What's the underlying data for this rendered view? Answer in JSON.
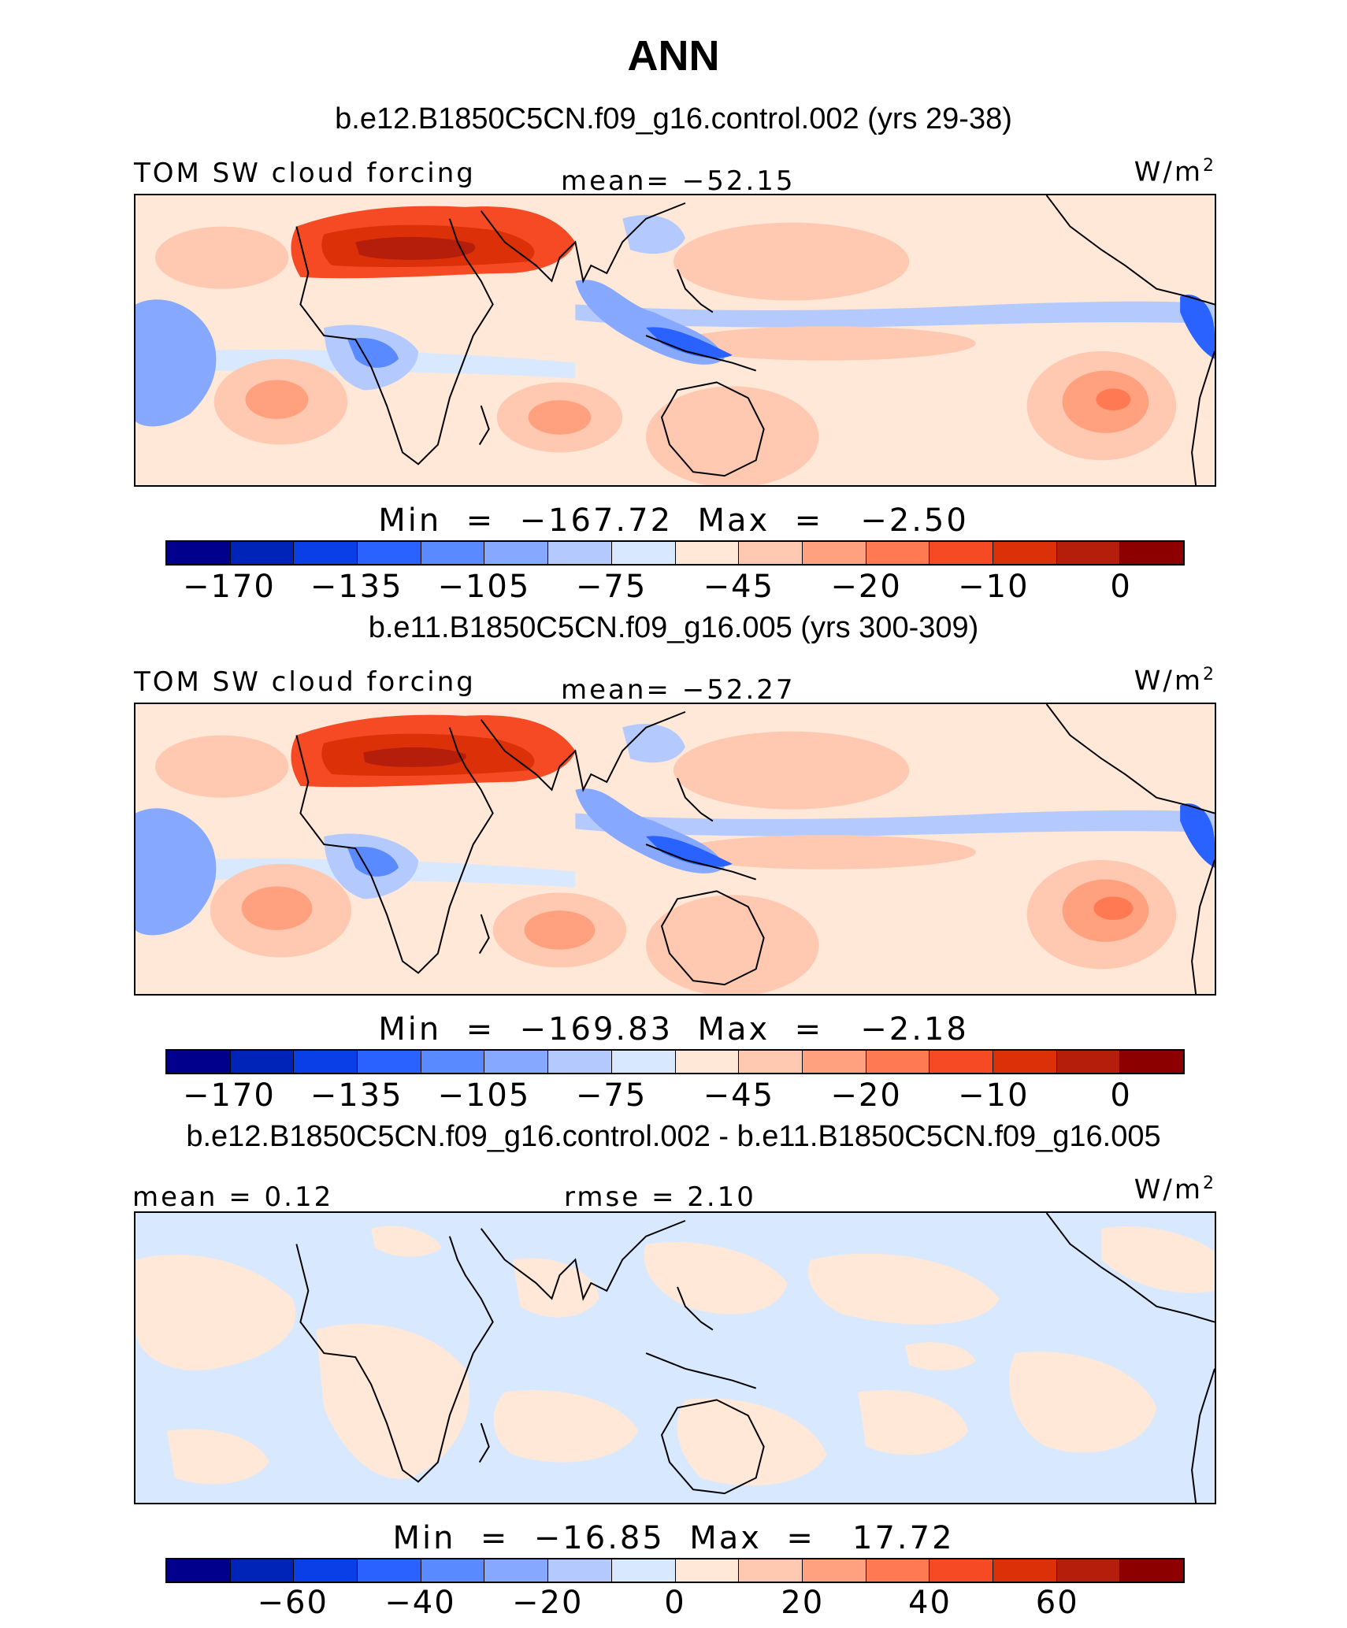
{
  "title": "ANN",
  "panels": [
    {
      "case_title": "b.e12.B1850C5CN.f09_g16.control.002 (yrs 29-38)",
      "left_label": "TOM SW cloud forcing",
      "center_label": "mean=  −52.15",
      "units": "W/m",
      "units_sup": "2",
      "minmax": "Min  =  −167.72  Max  =   −2.50",
      "colorbar_ticks": [
        "−170",
        "−135",
        "−105",
        "−75",
        "−45",
        "−20",
        "−10",
        "0"
      ],
      "kind": "field"
    },
    {
      "case_title": "b.e11.B1850C5CN.f09_g16.005 (yrs 300-309)",
      "left_label": "TOM SW cloud forcing",
      "center_label": "mean=  −52.27",
      "units": "W/m",
      "units_sup": "2",
      "minmax": "Min  =  −169.83  Max  =   −2.18",
      "colorbar_ticks": [
        "−170",
        "−135",
        "−105",
        "−75",
        "−45",
        "−20",
        "−10",
        "0"
      ],
      "kind": "field"
    },
    {
      "case_title": "b.e12.B1850C5CN.f09_g16.control.002 - b.e11.B1850C5CN.f09_g16.005",
      "left_label": "mean  =    0.12",
      "center_label": "rmse  =    2.10",
      "units": "W/m",
      "units_sup": "2",
      "minmax": "Min  =  −16.85  Max  =   17.72",
      "colorbar_ticks": [
        "−60",
        "−40",
        "−20",
        "0",
        "20",
        "40",
        "60"
      ],
      "kind": "diff"
    }
  ],
  "colorbar_colors": [
    "#00008c",
    "#0024b8",
    "#0a3ee6",
    "#2a62ff",
    "#5a8aff",
    "#86a8ff",
    "#b4caff",
    "#d8e8ff",
    "#ffe8d8",
    "#ffc8b0",
    "#ffa07e",
    "#ff7a52",
    "#f54a24",
    "#dc3008",
    "#b41e0a",
    "#8c0000"
  ],
  "colors": {
    "ocean_light_blue": "#d8e8ff",
    "light_peach": "#ffe8d8",
    "coast": "#000000"
  }
}
